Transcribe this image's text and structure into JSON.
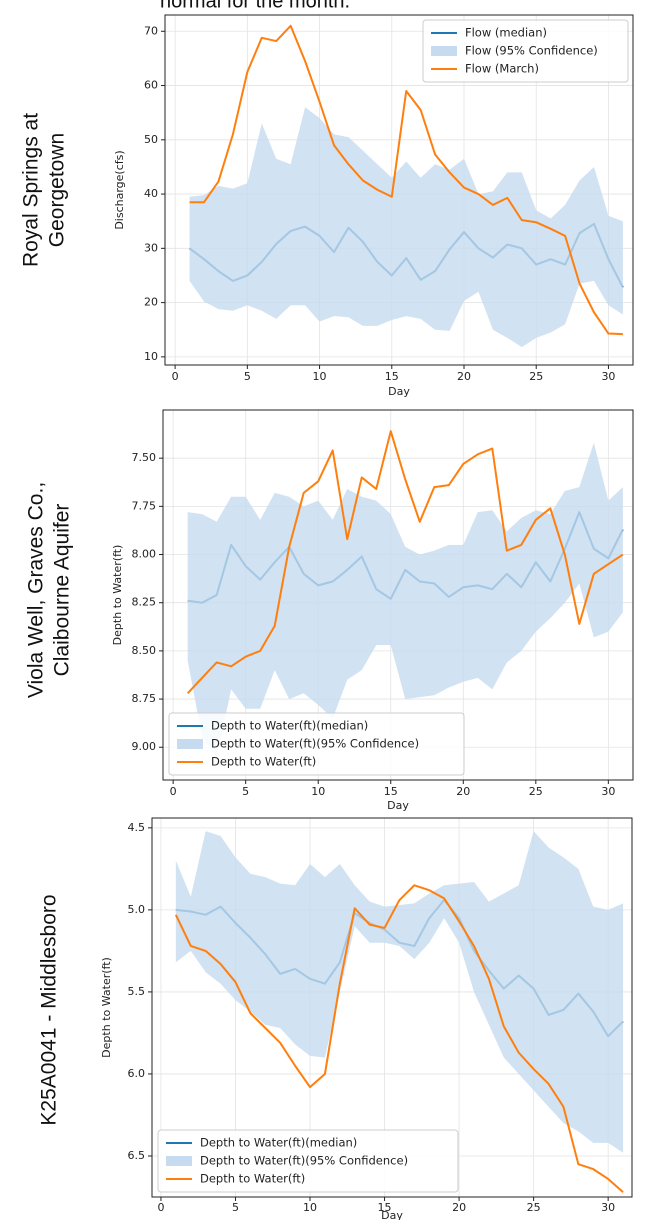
{
  "header": {
    "text": "normal for the month."
  },
  "chart_data": [
    {
      "type": "line",
      "title_lines": [
        "Royal Springs at",
        "Georgetown"
      ],
      "ylabel": "Discharge(cfs)",
      "xlabel": "Day",
      "grid": true,
      "legend": "upper right",
      "y_inverted": false,
      "xlim": [
        -0.7,
        31.7
      ],
      "xticks": [
        0,
        5,
        10,
        15,
        20,
        25,
        30
      ],
      "ylim": [
        8.5,
        73
      ],
      "yticks": [
        10,
        20,
        30,
        40,
        50,
        60,
        70
      ],
      "x": [
        1,
        2,
        3,
        4,
        5,
        6,
        7,
        8,
        9,
        10,
        11,
        12,
        13,
        14,
        15,
        16,
        17,
        18,
        19,
        20,
        21,
        22,
        23,
        24,
        25,
        26,
        27,
        28,
        29,
        30,
        31
      ],
      "series": [
        {
          "name": "Flow (median)",
          "color": "#1f77b4",
          "values": [
            30,
            28,
            25.8,
            24,
            25,
            27.5,
            30.8,
            33.2,
            34,
            32.3,
            29.3,
            33.8,
            31.2,
            27.5,
            25,
            28.2,
            24.2,
            25.8,
            29.8,
            33,
            30,
            28.3,
            30.7,
            30,
            27,
            28,
            27,
            32.8,
            34.5,
            28,
            22.8
          ]
        },
        {
          "name": "Flow (95% Confidence)",
          "color": "#c6dbef",
          "lower": [
            24,
            20.2,
            18.8,
            18.5,
            19.5,
            18.5,
            17,
            19.5,
            19.5,
            16.5,
            17.5,
            17.3,
            15.7,
            15.7,
            16.8,
            17.5,
            17,
            15,
            14.8,
            20.3,
            22,
            15,
            13.5,
            11.8,
            13.5,
            14.5,
            16,
            23.5,
            24,
            19.5,
            17.8
          ],
          "upper": [
            39.5,
            39.8,
            41.5,
            41,
            42,
            53,
            46.5,
            45.5,
            56,
            54,
            51,
            50.5,
            48,
            45.5,
            43,
            46,
            43,
            45.5,
            44.5,
            46.5,
            40,
            40.5,
            44,
            44,
            37,
            35.5,
            38,
            42.5,
            45,
            36,
            35
          ]
        },
        {
          "name": "Flow (March)",
          "color": "#ff7f0e",
          "values": [
            38.5,
            38.5,
            42.3,
            51,
            62.5,
            68.8,
            68.2,
            71,
            64.5,
            57,
            49,
            45.5,
            42.5,
            40.8,
            39.5,
            59,
            55.5,
            47.3,
            44,
            41.2,
            40,
            38,
            39.3,
            35.2,
            34.8,
            33.6,
            32.3,
            23.5,
            18.2,
            14.3,
            14.2
          ]
        }
      ]
    },
    {
      "type": "line",
      "title_lines": [
        "Viola Well, Graves Co.,",
        "Claibourne Aquifer"
      ],
      "ylabel": "Depth to Water(ft)",
      "xlabel": "Day",
      "grid": true,
      "legend": "lower left",
      "y_inverted": true,
      "xlim": [
        -0.7,
        31.7
      ],
      "xticks": [
        0,
        5,
        10,
        15,
        20,
        25,
        30
      ],
      "ylim": [
        7.25,
        9.17
      ],
      "yticks": [
        {
          "value": 7.5,
          "label": "7.50"
        },
        {
          "value": 7.75,
          "label": "7.75"
        },
        {
          "value": 8,
          "label": "8.00"
        },
        {
          "value": 8.25,
          "label": "8.25"
        },
        {
          "value": 8.5,
          "label": "8.50"
        },
        {
          "value": 8.75,
          "label": "8.75"
        },
        {
          "value": 9,
          "label": "9.00"
        }
      ],
      "x": [
        1,
        2,
        3,
        4,
        5,
        6,
        7,
        8,
        9,
        10,
        11,
        12,
        13,
        14,
        15,
        16,
        17,
        18,
        19,
        20,
        21,
        22,
        23,
        24,
        25,
        26,
        27,
        28,
        29,
        30,
        31
      ],
      "series": [
        {
          "name": "Depth to Water(ft)(median)",
          "color": "#1f77b4",
          "values": [
            8.24,
            8.25,
            8.21,
            7.95,
            8.06,
            8.13,
            8.04,
            7.96,
            8.1,
            8.16,
            8.14,
            8.08,
            8.01,
            8.18,
            8.23,
            8.08,
            8.14,
            8.15,
            8.22,
            8.17,
            8.16,
            8.18,
            8.1,
            8.17,
            8.04,
            8.14,
            7.97,
            7.78,
            7.97,
            8.02,
            7.87
          ]
        },
        {
          "name": "Depth to Water(ft)(95% Confidence)",
          "color": "#c6dbef",
          "lower": [
            7.78,
            7.79,
            7.83,
            7.7,
            7.7,
            7.82,
            7.68,
            7.7,
            7.75,
            7.72,
            7.82,
            7.66,
            7.7,
            7.72,
            7.79,
            7.96,
            8.0,
            7.98,
            7.95,
            7.95,
            7.78,
            7.77,
            7.88,
            7.81,
            7.77,
            7.79,
            7.67,
            7.65,
            7.42,
            7.72,
            7.65
          ],
          "upper": [
            8.55,
            8.95,
            9.05,
            8.7,
            8.8,
            8.8,
            8.6,
            8.75,
            8.72,
            8.78,
            8.85,
            8.65,
            8.6,
            8.47,
            8.47,
            8.75,
            8.74,
            8.73,
            8.69,
            8.66,
            8.64,
            8.7,
            8.56,
            8.5,
            8.4,
            8.33,
            8.25,
            8.15,
            8.43,
            8.4,
            8.3
          ]
        },
        {
          "name": "Depth to Water(ft)",
          "color": "#ff7f0e",
          "values": [
            8.72,
            8.64,
            8.56,
            8.58,
            8.53,
            8.5,
            8.37,
            7.96,
            7.68,
            7.62,
            7.46,
            7.92,
            7.6,
            7.66,
            7.36,
            7.61,
            7.83,
            7.65,
            7.64,
            7.53,
            7.48,
            7.45,
            7.98,
            7.95,
            7.82,
            7.76,
            8.0,
            8.36,
            8.1,
            8.05,
            8.0
          ]
        }
      ]
    },
    {
      "type": "line",
      "title_lines": [
        "K25A0041 - Middlesboro"
      ],
      "ylabel": "Depth to Water(ft)",
      "xlabel": "Day",
      "grid": true,
      "legend": "lower left",
      "y_inverted": true,
      "xlim": [
        -0.6,
        31.6
      ],
      "xticks": [
        0,
        5,
        10,
        15,
        20,
        25,
        30
      ],
      "ylim": [
        4.44,
        6.75
      ],
      "yticks": [
        4.5,
        {
          "value": 5,
          "label": "5.0"
        },
        5.5,
        {
          "value": 6,
          "label": "6.0"
        },
        6.5
      ],
      "x": [
        1,
        2,
        3,
        4,
        5,
        6,
        7,
        8,
        9,
        10,
        11,
        12,
        13,
        14,
        15,
        16,
        17,
        18,
        19,
        20,
        21,
        22,
        23,
        24,
        25,
        26,
        27,
        28,
        29,
        30,
        31
      ],
      "series": [
        {
          "name": "Depth to Water(ft)(median)",
          "color": "#1f77b4",
          "values": [
            5.0,
            5.01,
            5.03,
            4.98,
            5.08,
            5.17,
            5.27,
            5.39,
            5.36,
            5.42,
            5.45,
            5.32,
            5.02,
            5.08,
            5.12,
            5.2,
            5.22,
            5.05,
            4.94,
            5.05,
            5.25,
            5.37,
            5.48,
            5.4,
            5.48,
            5.64,
            5.61,
            5.51,
            5.62,
            5.77,
            5.68
          ]
        },
        {
          "name": "Depth to Water(ft)(95% Confidence)",
          "color": "#c6dbef",
          "lower": [
            4.7,
            4.92,
            4.52,
            4.55,
            4.68,
            4.78,
            4.8,
            4.84,
            4.85,
            4.72,
            4.8,
            4.72,
            4.85,
            4.95,
            4.98,
            4.97,
            4.96,
            4.9,
            4.85,
            4.84,
            4.83,
            4.95,
            4.9,
            4.85,
            4.52,
            4.62,
            4.68,
            4.75,
            4.98,
            5.0,
            4.96
          ],
          "upper": [
            5.32,
            5.25,
            5.38,
            5.45,
            5.55,
            5.62,
            5.7,
            5.72,
            5.82,
            5.89,
            5.9,
            5.5,
            5.1,
            5.2,
            5.2,
            5.22,
            5.3,
            5.2,
            5.05,
            5.2,
            5.5,
            5.7,
            5.9,
            6.0,
            6.1,
            6.2,
            6.3,
            6.35,
            6.42,
            6.42,
            6.48
          ]
        },
        {
          "name": "Depth to Water(ft)",
          "color": "#ff7f0e",
          "values": [
            5.03,
            5.22,
            5.25,
            5.33,
            5.44,
            5.63,
            5.72,
            5.81,
            5.95,
            6.08,
            6.0,
            5.45,
            4.99,
            5.09,
            5.11,
            4.94,
            4.85,
            4.88,
            4.93,
            5.07,
            5.22,
            5.42,
            5.71,
            5.87,
            5.97,
            6.06,
            6.2,
            6.55,
            6.58,
            6.64,
            6.72
          ]
        }
      ]
    }
  ]
}
